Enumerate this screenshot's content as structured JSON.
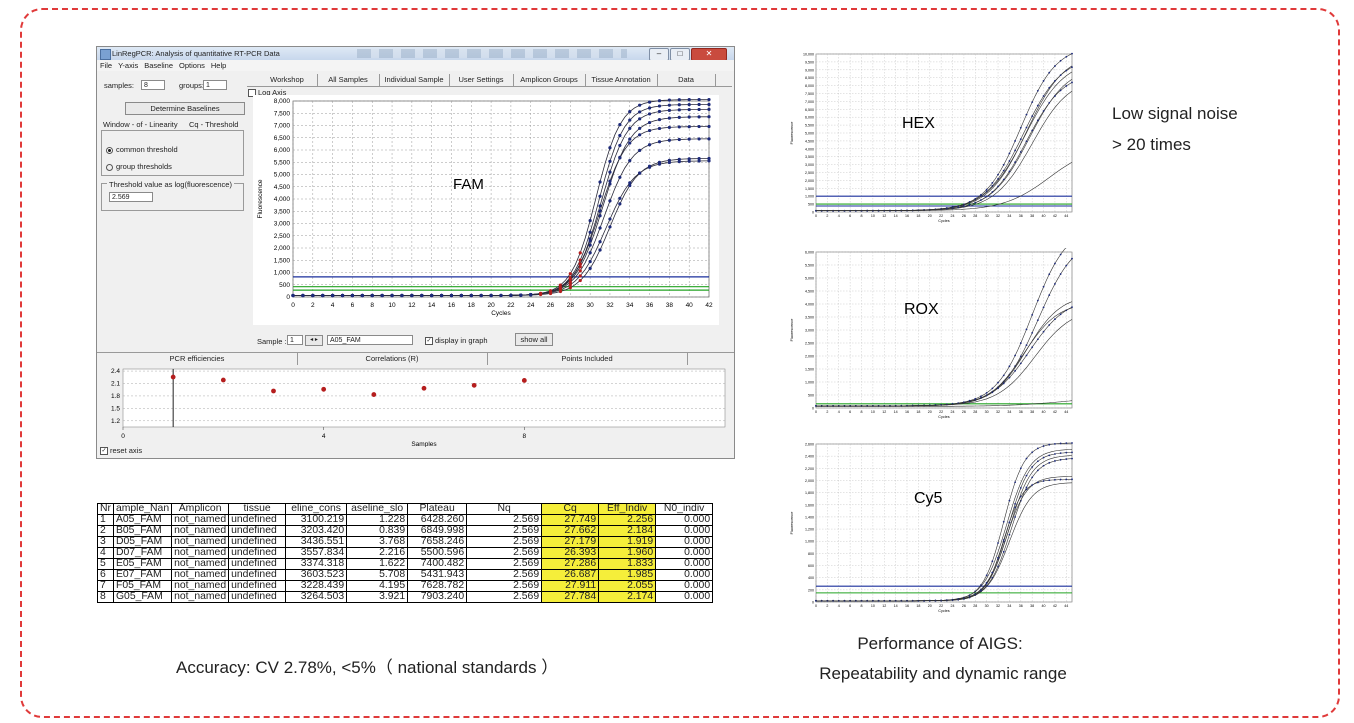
{
  "window": {
    "title": "LinRegPCR: Analysis of quantitative RT-PCR Data",
    "menu": [
      "File",
      "Y-axis",
      "Baseline",
      "Options",
      "Help"
    ],
    "samples_label": "samples:",
    "samples_value": "8",
    "groups_label": "groups:",
    "groups_value": "1",
    "determine_baselines": "Determine Baselines",
    "subtabs": [
      "Window - of - Linearity",
      "Cq - Threshold"
    ],
    "radio_common": "common threshold",
    "radio_group": "group thresholds",
    "threshold_label": "Threshold value as log(fluorescence)",
    "threshold_value": "2.569",
    "main_tabs": [
      "Workshop",
      "All Samples",
      "Individual Sample",
      "User Settings",
      "Amplicon Groups",
      "Tissue Annotation",
      "Data"
    ],
    "log_axis_label": "Log Axis",
    "sample_label": "Sample :",
    "sample_index": "1",
    "sample_name": "A05_FAM",
    "display_in_graph": "display in graph",
    "show_all": "show all",
    "bottom_tabs": [
      "PCR efficiencies",
      "Correlations (R)",
      "Points Included"
    ],
    "reset_axis": "reset axis"
  },
  "chart_data": [
    {
      "type": "line",
      "title": "FAM",
      "xlabel": "Cycles",
      "ylabel": "Fluorescence",
      "xlim": [
        0,
        42
      ],
      "ylim": [
        0,
        8000
      ],
      "xticks": [
        0,
        2,
        4,
        6,
        8,
        10,
        12,
        14,
        16,
        18,
        20,
        22,
        24,
        26,
        28,
        30,
        32,
        34,
        36,
        38,
        40,
        42
      ],
      "yticks": [
        0,
        500,
        1000,
        1500,
        2000,
        2500,
        3000,
        3500,
        4000,
        4500,
        5000,
        5500,
        6000,
        6500,
        7000,
        7500,
        8000
      ],
      "ytick_labels": [
        "0",
        "500",
        "1,000",
        "1,500",
        "2,000",
        "2,500",
        "3,000",
        "3,500",
        "4,000",
        "4,500",
        "5,000",
        "5,500",
        "6,000",
        "6,500",
        "7,000",
        "7,500",
        "8,000"
      ],
      "thresholds": [
        {
          "value": 820,
          "color": "#1a2f9c"
        },
        {
          "value": 420,
          "color": "#23a323"
        },
        {
          "value": 280,
          "color": "#23a323"
        }
      ],
      "series": [
        {
          "values": [
            {
              "plateau": 8000,
              "mid": 30.6,
              "k": 0.8
            }
          ]
        },
        {
          "values": [
            {
              "plateau": 7800,
              "mid": 30.9,
              "k": 0.78
            }
          ]
        },
        {
          "values": [
            {
              "plateau": 7600,
              "mid": 31.1,
              "k": 0.75
            }
          ]
        },
        {
          "values": [
            {
              "plateau": 7300,
              "mid": 31.3,
              "k": 0.72
            }
          ]
        },
        {
          "values": [
            {
              "plateau": 6900,
              "mid": 31.0,
              "k": 0.74
            }
          ]
        },
        {
          "values": [
            {
              "plateau": 6400,
              "mid": 31.4,
              "k": 0.7
            }
          ]
        },
        {
          "values": [
            {
              "plateau": 5600,
              "mid": 32.0,
              "k": 0.7
            }
          ]
        },
        {
          "values": [
            {
              "plateau": 5500,
              "mid": 31.6,
              "k": 0.68
            }
          ]
        }
      ]
    },
    {
      "type": "scatter",
      "title": "PCR efficiencies",
      "xlabel": "Samples",
      "xlim": [
        0,
        12
      ],
      "ylim": [
        1.05,
        2.45
      ],
      "xticks": [
        0,
        4,
        8
      ],
      "yticks": [
        1.2,
        1.5,
        1.8,
        2.1,
        2.4
      ],
      "x": [
        1,
        2,
        3,
        4,
        5,
        6,
        7,
        8
      ],
      "y": [
        2.256,
        2.184,
        1.919,
        1.96,
        1.833,
        1.985,
        2.055,
        2.174
      ]
    },
    {
      "type": "line",
      "title": "HEX",
      "xlabel": "Cycles",
      "ylabel": "Fluorescence",
      "xlim": [
        0,
        45
      ],
      "ylim": [
        0,
        10000
      ],
      "ytick_labels": [
        "0",
        "500",
        "1,000",
        "1,500",
        "2,000",
        "2,500",
        "3,000",
        "3,500",
        "4,000",
        "4,500",
        "5,000",
        "5,500",
        "6,000",
        "6,500",
        "7,000",
        "7,500",
        "8,000",
        "8,500",
        "9,000",
        "9,500",
        "10,000"
      ],
      "xtick_labels": [
        "0",
        "2",
        "4",
        "6",
        "8",
        "10",
        "12",
        "14",
        "16",
        "18",
        "20",
        "22",
        "24",
        "26",
        "28",
        "30",
        "32",
        "34",
        "36",
        "38",
        "40",
        "42",
        "44"
      ]
    },
    {
      "type": "line",
      "title": "ROX",
      "xlabel": "Cycles",
      "ylabel": "Fluorescence",
      "xlim": [
        0,
        45
      ],
      "ylim": [
        0,
        6000
      ],
      "ytick_labels": [
        "0",
        "500",
        "1,000",
        "1,500",
        "2,000",
        "2,500",
        "3,000",
        "3,500",
        "4,000",
        "4,500",
        "5,000",
        "5,500",
        "6,000"
      ],
      "xtick_labels": [
        "0",
        "2",
        "4",
        "6",
        "8",
        "10",
        "12",
        "14",
        "16",
        "18",
        "20",
        "22",
        "24",
        "26",
        "28",
        "30",
        "32",
        "34",
        "36",
        "38",
        "40",
        "42",
        "44"
      ]
    },
    {
      "type": "line",
      "title": "Cy5",
      "xlabel": "Cycles",
      "ylabel": "Fluorescence",
      "xlim": [
        0,
        45
      ],
      "ylim": [
        0,
        2600
      ],
      "ytick_labels": [
        "0",
        "200",
        "400",
        "600",
        "800",
        "1,000",
        "1,200",
        "1,400",
        "1,600",
        "1,800",
        "2,000",
        "2,200",
        "2,400",
        "2,600"
      ],
      "xtick_labels": [
        "0",
        "2",
        "4",
        "6",
        "8",
        "10",
        "12",
        "14",
        "16",
        "18",
        "20",
        "22",
        "24",
        "26",
        "28",
        "30",
        "32",
        "34",
        "36",
        "38",
        "40",
        "42",
        "44"
      ]
    }
  ],
  "table": {
    "headers": [
      "Nr",
      "ample_Nan",
      "Amplicon",
      "tissue",
      "eline_cons",
      "aseline_slo",
      "Plateau",
      "Nq",
      "Cq",
      "Eff_Indiv",
      "N0_indiv"
    ],
    "rows": [
      [
        "1",
        "A05_FAM",
        "not_named",
        "undefined",
        "3100.219",
        "1.228",
        "6428.260",
        "2.569",
        "27.749",
        "2.256",
        "0.000"
      ],
      [
        "2",
        "B05_FAM",
        "not_named",
        "undefined",
        "3203.420",
        "0.839",
        "6849.998",
        "2.569",
        "27.662",
        "2.184",
        "0.000"
      ],
      [
        "3",
        "D05_FAM",
        "not_named",
        "undefined",
        "3436.551",
        "3.768",
        "7658.246",
        "2.569",
        "27.179",
        "1.919",
        "0.000"
      ],
      [
        "4",
        "D07_FAM",
        "not_named",
        "undefined",
        "3557.834",
        "2.216",
        "5500.596",
        "2.569",
        "26.393",
        "1.960",
        "0.000"
      ],
      [
        "5",
        "E05_FAM",
        "not_named",
        "undefined",
        "3374.318",
        "1.622",
        "7400.482",
        "2.569",
        "27.286",
        "1.833",
        "0.000"
      ],
      [
        "6",
        "E07_FAM",
        "not_named",
        "undefined",
        "3603.523",
        "5.708",
        "5431.943",
        "2.569",
        "26.687",
        "1.985",
        "0.000"
      ],
      [
        "7",
        "F05_FAM",
        "not_named",
        "undefined",
        "3228.439",
        "4.195",
        "7628.782",
        "2.569",
        "27.911",
        "2.055",
        "0.000"
      ],
      [
        "8",
        "G05_FAM",
        "not_named",
        "undefined",
        "3264.503",
        "3.921",
        "7903.240",
        "2.569",
        "27.784",
        "2.174",
        "0.000"
      ]
    ]
  },
  "captions": {
    "accuracy": "Accuracy: CV 2.78%, <5%（ national standards ）",
    "noise_line1": "Low signal noise",
    "noise_line2": "> 20 times",
    "perf_line1": "Performance of AIGS:",
    "perf_line2": "Repeatability and dynamic range"
  },
  "colors": {
    "border": "#e03a3a",
    "highlight": "#f5ee3a",
    "threshold_blue": "#1a2f9c",
    "threshold_green": "#23a323",
    "point_red": "#b51e1e"
  }
}
